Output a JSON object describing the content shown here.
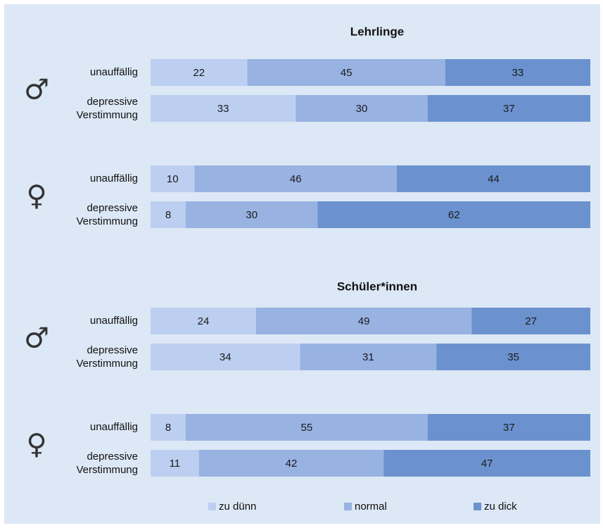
{
  "chart_data": {
    "type": "bar",
    "stacked": "percent",
    "orientation": "horizontal",
    "segment_names": [
      "zu dünn",
      "normal",
      "zu dick"
    ],
    "colors": {
      "zu dünn": "#bccff0",
      "normal": "#98b2e2",
      "zu dick": "#6b92cf",
      "background": "#dce8f5"
    },
    "legend": {
      "position": "bottom",
      "items": [
        "zu dünn",
        "normal",
        "zu dick"
      ]
    },
    "panels": [
      {
        "title": "Lehrlinge",
        "groups": [
          {
            "symbol": "♂",
            "icon": "male-symbol-icon",
            "rows": [
              {
                "label": [
                  "unauffällig"
                ],
                "values": [
                  22,
                  45,
                  33
                ]
              },
              {
                "label": [
                  "depressive",
                  "Verstimmung"
                ],
                "values": [
                  33,
                  30,
                  37
                ]
              }
            ]
          },
          {
            "symbol": "♀",
            "icon": "female-symbol-icon",
            "rows": [
              {
                "label": [
                  "unauffällig"
                ],
                "values": [
                  10,
                  46,
                  44
                ]
              },
              {
                "label": [
                  "depressive",
                  "Verstimmung"
                ],
                "values": [
                  8,
                  30,
                  62
                ]
              }
            ]
          }
        ]
      },
      {
        "title": "Schüler*innen",
        "groups": [
          {
            "symbol": "♂",
            "icon": "male-symbol-icon",
            "rows": [
              {
                "label": [
                  "unauffällig"
                ],
                "values": [
                  24,
                  49,
                  27
                ]
              },
              {
                "label": [
                  "depressive",
                  "Verstimmung"
                ],
                "values": [
                  34,
                  31,
                  35
                ]
              }
            ]
          },
          {
            "symbol": "♀",
            "icon": "female-symbol-icon",
            "rows": [
              {
                "label": [
                  "unauffällig"
                ],
                "values": [
                  8,
                  55,
                  37
                ]
              },
              {
                "label": [
                  "depressive",
                  "Verstimmung"
                ],
                "values": [
                  11,
                  42,
                  47
                ]
              }
            ]
          }
        ]
      }
    ]
  }
}
